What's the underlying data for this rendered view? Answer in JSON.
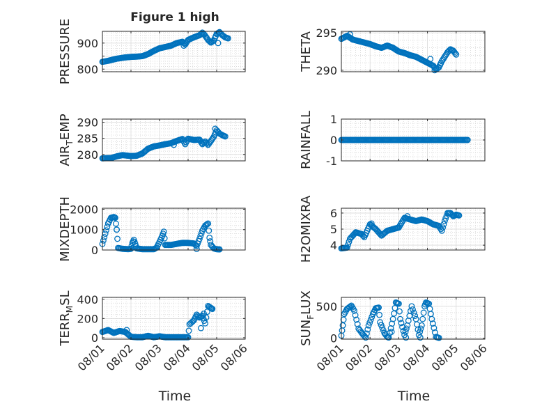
{
  "figure": {
    "title": "Figure 1 high",
    "xlabel": "Time",
    "x_tick_labels": [
      "08/01",
      "08/02",
      "08/03",
      "08/04",
      "08/05",
      "08/06"
    ],
    "marker_color": "#0072BD"
  },
  "chart_data": [
    {
      "type": "scatter",
      "ylabel": "PRESSURE",
      "ylim": [
        790,
        945
      ],
      "yticks": [
        800,
        850,
        900
      ],
      "ytick_labels": [
        "800",
        "",
        "900"
      ],
      "xlim": [
        0,
        5
      ],
      "grid": true,
      "anchors": [
        [
          0.0,
          828
        ],
        [
          0.2,
          832
        ],
        [
          0.5,
          840
        ],
        [
          0.8,
          845
        ],
        [
          1.0,
          847
        ],
        [
          1.2,
          848
        ],
        [
          1.4,
          850
        ],
        [
          1.6,
          858
        ],
        [
          1.8,
          870
        ],
        [
          2.0,
          880
        ],
        [
          2.2,
          885
        ],
        [
          2.4,
          890
        ],
        [
          2.6,
          900
        ],
        [
          2.8,
          905
        ],
        [
          2.9,
          895
        ],
        [
          3.0,
          912
        ],
        [
          3.2,
          922
        ],
        [
          3.4,
          930
        ],
        [
          3.5,
          940
        ],
        [
          3.6,
          928
        ],
        [
          3.7,
          912
        ],
        [
          3.8,
          902
        ],
        [
          3.9,
          910
        ],
        [
          4.0,
          935
        ],
        [
          4.1,
          942
        ],
        [
          4.2,
          930
        ],
        [
          4.3,
          922
        ],
        [
          4.4,
          918
        ]
      ],
      "scatter_points": [
        [
          2.85,
          890
        ],
        [
          3.55,
          935
        ],
        [
          4.05,
          900
        ]
      ]
    },
    {
      "type": "scatter",
      "ylabel": "THETA",
      "ylim": [
        289.8,
        295.2
      ],
      "yticks": [
        290,
        295
      ],
      "ytick_labels": [
        "290",
        "295"
      ],
      "xlim": [
        0,
        5
      ],
      "grid": true,
      "anchors": [
        [
          0.0,
          294.2
        ],
        [
          0.2,
          294.6
        ],
        [
          0.4,
          294.1
        ],
        [
          0.6,
          293.9
        ],
        [
          0.8,
          293.7
        ],
        [
          1.0,
          293.5
        ],
        [
          1.2,
          293.2
        ],
        [
          1.4,
          293.0
        ],
        [
          1.6,
          293.3
        ],
        [
          1.8,
          293.0
        ],
        [
          2.0,
          292.5
        ],
        [
          2.2,
          292.3
        ],
        [
          2.4,
          292.0
        ],
        [
          2.6,
          291.8
        ],
        [
          2.8,
          291.4
        ],
        [
          3.0,
          291.0
        ],
        [
          3.2,
          290.6
        ],
        [
          3.3,
          290.1
        ],
        [
          3.4,
          290.4
        ],
        [
          3.5,
          291.2
        ],
        [
          3.6,
          291.8
        ],
        [
          3.7,
          292.4
        ],
        [
          3.8,
          292.8
        ],
        [
          3.9,
          292.6
        ],
        [
          4.0,
          292.1
        ]
      ],
      "scatter_points": [
        [
          0.3,
          294.8
        ],
        [
          3.1,
          291.5
        ],
        [
          3.25,
          290.0
        ]
      ]
    },
    {
      "type": "scatter",
      "ylabel_main": "AIR",
      "ylabel_sub": "T",
      "ylabel_rest": "EMP",
      "ylim": [
        278,
        291
      ],
      "yticks": [
        280,
        285,
        290
      ],
      "ytick_labels": [
        "280",
        "285",
        "290"
      ],
      "xlim": [
        0,
        5
      ],
      "grid": true,
      "anchors": [
        [
          0.0,
          278.8
        ],
        [
          0.3,
          278.9
        ],
        [
          0.5,
          279.4
        ],
        [
          0.7,
          279.8
        ],
        [
          0.9,
          279.6
        ],
        [
          1.0,
          279.5
        ],
        [
          1.2,
          279.6
        ],
        [
          1.4,
          280.3
        ],
        [
          1.6,
          281.8
        ],
        [
          1.8,
          282.5
        ],
        [
          2.0,
          282.8
        ],
        [
          2.2,
          283.2
        ],
        [
          2.4,
          283.5
        ],
        [
          2.6,
          284.2
        ],
        [
          2.8,
          284.8
        ],
        [
          2.9,
          283.2
        ],
        [
          3.0,
          284.9
        ],
        [
          3.2,
          284.5
        ],
        [
          3.4,
          284.6
        ],
        [
          3.5,
          283.2
        ],
        [
          3.6,
          284.0
        ],
        [
          3.7,
          283.0
        ],
        [
          3.8,
          284.2
        ],
        [
          3.9,
          285.5
        ],
        [
          4.0,
          287.5
        ],
        [
          4.1,
          286.5
        ],
        [
          4.2,
          286.0
        ],
        [
          4.3,
          285.6
        ]
      ],
      "scatter_points": [
        [
          3.95,
          288.0
        ],
        [
          2.5,
          283.0
        ]
      ]
    },
    {
      "type": "scatter",
      "ylabel": "RAINFALL",
      "ylim": [
        -1,
        1
      ],
      "yticks": [
        -1,
        0,
        1
      ],
      "ytick_labels": [
        "-1",
        "0",
        "1"
      ],
      "xlim": [
        0,
        5
      ],
      "grid": true,
      "anchors": [
        [
          0.0,
          0
        ],
        [
          4.4,
          0
        ]
      ],
      "scatter_points": []
    },
    {
      "type": "scatter",
      "ylabel": "MIXDEPTH",
      "ylim": [
        0,
        2050
      ],
      "yticks": [
        0,
        1000,
        2000
      ],
      "ytick_labels": [
        "0",
        "1000",
        "2000"
      ],
      "xlim": [
        0,
        5
      ],
      "grid": true,
      "anchors": [
        [
          0.0,
          300
        ],
        [
          0.1,
          800
        ],
        [
          0.2,
          1300
        ],
        [
          0.3,
          1580
        ],
        [
          0.4,
          1620
        ],
        [
          0.45,
          1580
        ],
        [
          0.5,
          1000
        ],
        [
          0.55,
          100
        ],
        [
          0.7,
          60
        ],
        [
          0.9,
          40
        ],
        [
          1.0,
          60
        ],
        [
          1.05,
          350
        ],
        [
          1.1,
          500
        ],
        [
          1.15,
          300
        ],
        [
          1.2,
          80
        ],
        [
          1.4,
          40
        ],
        [
          1.6,
          40
        ],
        [
          1.8,
          40
        ],
        [
          1.9,
          120
        ],
        [
          2.0,
          400
        ],
        [
          2.1,
          700
        ],
        [
          2.15,
          900
        ],
        [
          2.2,
          250
        ],
        [
          2.4,
          250
        ],
        [
          2.6,
          300
        ],
        [
          2.8,
          350
        ],
        [
          3.0,
          350
        ],
        [
          3.2,
          320
        ],
        [
          3.3,
          200
        ],
        [
          3.4,
          550
        ],
        [
          3.5,
          950
        ],
        [
          3.6,
          1200
        ],
        [
          3.7,
          1300
        ],
        [
          3.75,
          600
        ],
        [
          3.8,
          250
        ],
        [
          3.9,
          80
        ],
        [
          4.0,
          40
        ],
        [
          4.1,
          30
        ]
      ],
      "scatter_points": [
        [
          3.3,
          50
        ],
        [
          0.5,
          1000
        ]
      ]
    },
    {
      "type": "scatter",
      "ylabel": "H2OMIXRA",
      "ylim": [
        3.7,
        6.3
      ],
      "yticks": [
        4,
        5,
        6
      ],
      "ytick_labels": [
        "4",
        "5",
        "6"
      ],
      "xlim": [
        0,
        5
      ],
      "grid": true,
      "anchors": [
        [
          0.0,
          3.8
        ],
        [
          0.2,
          3.85
        ],
        [
          0.3,
          4.4
        ],
        [
          0.5,
          4.8
        ],
        [
          0.7,
          4.7
        ],
        [
          0.8,
          4.5
        ],
        [
          1.0,
          5.3
        ],
        [
          1.2,
          5.0
        ],
        [
          1.4,
          4.6
        ],
        [
          1.6,
          4.9
        ],
        [
          1.8,
          5.0
        ],
        [
          2.0,
          5.1
        ],
        [
          2.2,
          5.7
        ],
        [
          2.4,
          5.6
        ],
        [
          2.6,
          5.5
        ],
        [
          2.8,
          5.6
        ],
        [
          3.0,
          5.5
        ],
        [
          3.2,
          5.3
        ],
        [
          3.4,
          5.2
        ],
        [
          3.5,
          4.9
        ],
        [
          3.6,
          5.5
        ],
        [
          3.7,
          6.0
        ],
        [
          3.8,
          6.0
        ],
        [
          3.9,
          5.8
        ],
        [
          4.0,
          5.9
        ],
        [
          4.1,
          5.85
        ]
      ],
      "scatter_points": [
        [
          1.05,
          5.35
        ],
        [
          2.3,
          5.8
        ]
      ]
    },
    {
      "type": "scatter",
      "ylabel_main": "TERR",
      "ylabel_sub": "M",
      "ylabel_rest": "SL",
      "ylim": [
        -15,
        420
      ],
      "yticks": [
        0,
        200,
        400
      ],
      "ytick_labels": [
        "0",
        "200",
        "400"
      ],
      "xlim": [
        0,
        5
      ],
      "grid": true,
      "anchors": [
        [
          0.0,
          60
        ],
        [
          0.2,
          80
        ],
        [
          0.4,
          50
        ],
        [
          0.6,
          70
        ],
        [
          0.8,
          60
        ],
        [
          1.0,
          10
        ],
        [
          1.2,
          5
        ],
        [
          1.4,
          5
        ],
        [
          1.6,
          20
        ],
        [
          1.8,
          5
        ],
        [
          2.0,
          15
        ],
        [
          2.2,
          5
        ],
        [
          2.4,
          5
        ],
        [
          2.6,
          5
        ],
        [
          2.8,
          5
        ],
        [
          3.0,
          5
        ],
        [
          3.05,
          140
        ],
        [
          3.2,
          180
        ],
        [
          3.3,
          240
        ],
        [
          3.4,
          210
        ],
        [
          3.5,
          230
        ],
        [
          3.6,
          150
        ],
        [
          3.7,
          330
        ],
        [
          3.8,
          310
        ],
        [
          3.85,
          300
        ]
      ],
      "scatter_points": [
        [
          3.45,
          100
        ],
        [
          3.55,
          250
        ],
        [
          0.85,
          80
        ]
      ]
    },
    {
      "type": "scatter",
      "ylabel_main": "SUN",
      "ylabel_sub": "F",
      "ylabel_rest": "LUX",
      "ylim": [
        -15,
        640
      ],
      "yticks": [
        0,
        500
      ],
      "ytick_labels": [
        "0",
        "500"
      ],
      "xlim": [
        0,
        5
      ],
      "grid": true,
      "anchors": [
        [
          0.0,
          40
        ],
        [
          0.05,
          200
        ],
        [
          0.1,
          380
        ],
        [
          0.2,
          460
        ],
        [
          0.35,
          510
        ],
        [
          0.45,
          430
        ],
        [
          0.6,
          150
        ],
        [
          0.75,
          60
        ],
        [
          0.85,
          10
        ],
        [
          0.95,
          200
        ],
        [
          1.1,
          380
        ],
        [
          1.2,
          470
        ],
        [
          1.3,
          480
        ],
        [
          1.35,
          250
        ],
        [
          1.5,
          80
        ],
        [
          1.6,
          20
        ],
        [
          1.65,
          10
        ],
        [
          1.8,
          300
        ],
        [
          1.9,
          560
        ],
        [
          2.0,
          540
        ],
        [
          2.05,
          300
        ],
        [
          2.2,
          50
        ],
        [
          2.3,
          200
        ],
        [
          2.45,
          500
        ],
        [
          2.6,
          300
        ],
        [
          2.7,
          50
        ],
        [
          2.8,
          200
        ],
        [
          2.9,
          500
        ],
        [
          2.95,
          560
        ],
        [
          3.05,
          540
        ],
        [
          3.15,
          300
        ],
        [
          3.3,
          20
        ],
        [
          3.4,
          5
        ]
      ],
      "scatter_points": [
        [
          1.75,
          100
        ],
        [
          2.25,
          10
        ],
        [
          2.75,
          10
        ]
      ]
    }
  ]
}
